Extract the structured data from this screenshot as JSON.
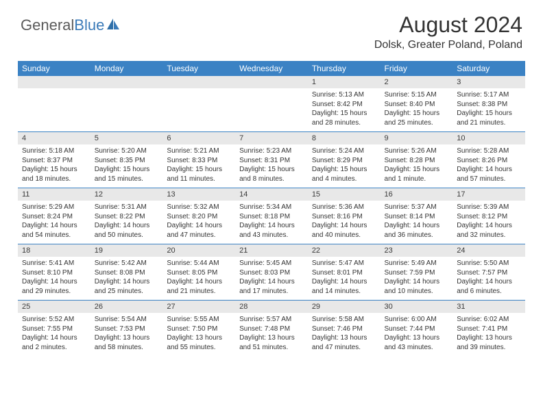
{
  "logo": {
    "text1": "General",
    "text2": "Blue"
  },
  "header": {
    "title": "August 2024",
    "location": "Dolsk, Greater Poland, Poland"
  },
  "colors": {
    "header_bg": "#3b82c4",
    "header_text": "#ffffff",
    "daynum_bg": "#e8e8e8",
    "row_border": "#3b82c4",
    "text": "#333333",
    "logo_gray": "#5a5a5a",
    "logo_blue": "#3a7ab8"
  },
  "dayNames": [
    "Sunday",
    "Monday",
    "Tuesday",
    "Wednesday",
    "Thursday",
    "Friday",
    "Saturday"
  ],
  "weeks": [
    [
      {
        "num": "",
        "text": ""
      },
      {
        "num": "",
        "text": ""
      },
      {
        "num": "",
        "text": ""
      },
      {
        "num": "",
        "text": ""
      },
      {
        "num": "1",
        "text": "Sunrise: 5:13 AM\nSunset: 8:42 PM\nDaylight: 15 hours and 28 minutes."
      },
      {
        "num": "2",
        "text": "Sunrise: 5:15 AM\nSunset: 8:40 PM\nDaylight: 15 hours and 25 minutes."
      },
      {
        "num": "3",
        "text": "Sunrise: 5:17 AM\nSunset: 8:38 PM\nDaylight: 15 hours and 21 minutes."
      }
    ],
    [
      {
        "num": "4",
        "text": "Sunrise: 5:18 AM\nSunset: 8:37 PM\nDaylight: 15 hours and 18 minutes."
      },
      {
        "num": "5",
        "text": "Sunrise: 5:20 AM\nSunset: 8:35 PM\nDaylight: 15 hours and 15 minutes."
      },
      {
        "num": "6",
        "text": "Sunrise: 5:21 AM\nSunset: 8:33 PM\nDaylight: 15 hours and 11 minutes."
      },
      {
        "num": "7",
        "text": "Sunrise: 5:23 AM\nSunset: 8:31 PM\nDaylight: 15 hours and 8 minutes."
      },
      {
        "num": "8",
        "text": "Sunrise: 5:24 AM\nSunset: 8:29 PM\nDaylight: 15 hours and 4 minutes."
      },
      {
        "num": "9",
        "text": "Sunrise: 5:26 AM\nSunset: 8:28 PM\nDaylight: 15 hours and 1 minute."
      },
      {
        "num": "10",
        "text": "Sunrise: 5:28 AM\nSunset: 8:26 PM\nDaylight: 14 hours and 57 minutes."
      }
    ],
    [
      {
        "num": "11",
        "text": "Sunrise: 5:29 AM\nSunset: 8:24 PM\nDaylight: 14 hours and 54 minutes."
      },
      {
        "num": "12",
        "text": "Sunrise: 5:31 AM\nSunset: 8:22 PM\nDaylight: 14 hours and 50 minutes."
      },
      {
        "num": "13",
        "text": "Sunrise: 5:32 AM\nSunset: 8:20 PM\nDaylight: 14 hours and 47 minutes."
      },
      {
        "num": "14",
        "text": "Sunrise: 5:34 AM\nSunset: 8:18 PM\nDaylight: 14 hours and 43 minutes."
      },
      {
        "num": "15",
        "text": "Sunrise: 5:36 AM\nSunset: 8:16 PM\nDaylight: 14 hours and 40 minutes."
      },
      {
        "num": "16",
        "text": "Sunrise: 5:37 AM\nSunset: 8:14 PM\nDaylight: 14 hours and 36 minutes."
      },
      {
        "num": "17",
        "text": "Sunrise: 5:39 AM\nSunset: 8:12 PM\nDaylight: 14 hours and 32 minutes."
      }
    ],
    [
      {
        "num": "18",
        "text": "Sunrise: 5:41 AM\nSunset: 8:10 PM\nDaylight: 14 hours and 29 minutes."
      },
      {
        "num": "19",
        "text": "Sunrise: 5:42 AM\nSunset: 8:08 PM\nDaylight: 14 hours and 25 minutes."
      },
      {
        "num": "20",
        "text": "Sunrise: 5:44 AM\nSunset: 8:05 PM\nDaylight: 14 hours and 21 minutes."
      },
      {
        "num": "21",
        "text": "Sunrise: 5:45 AM\nSunset: 8:03 PM\nDaylight: 14 hours and 17 minutes."
      },
      {
        "num": "22",
        "text": "Sunrise: 5:47 AM\nSunset: 8:01 PM\nDaylight: 14 hours and 14 minutes."
      },
      {
        "num": "23",
        "text": "Sunrise: 5:49 AM\nSunset: 7:59 PM\nDaylight: 14 hours and 10 minutes."
      },
      {
        "num": "24",
        "text": "Sunrise: 5:50 AM\nSunset: 7:57 PM\nDaylight: 14 hours and 6 minutes."
      }
    ],
    [
      {
        "num": "25",
        "text": "Sunrise: 5:52 AM\nSunset: 7:55 PM\nDaylight: 14 hours and 2 minutes."
      },
      {
        "num": "26",
        "text": "Sunrise: 5:54 AM\nSunset: 7:53 PM\nDaylight: 13 hours and 58 minutes."
      },
      {
        "num": "27",
        "text": "Sunrise: 5:55 AM\nSunset: 7:50 PM\nDaylight: 13 hours and 55 minutes."
      },
      {
        "num": "28",
        "text": "Sunrise: 5:57 AM\nSunset: 7:48 PM\nDaylight: 13 hours and 51 minutes."
      },
      {
        "num": "29",
        "text": "Sunrise: 5:58 AM\nSunset: 7:46 PM\nDaylight: 13 hours and 47 minutes."
      },
      {
        "num": "30",
        "text": "Sunrise: 6:00 AM\nSunset: 7:44 PM\nDaylight: 13 hours and 43 minutes."
      },
      {
        "num": "31",
        "text": "Sunrise: 6:02 AM\nSunset: 7:41 PM\nDaylight: 13 hours and 39 minutes."
      }
    ]
  ]
}
